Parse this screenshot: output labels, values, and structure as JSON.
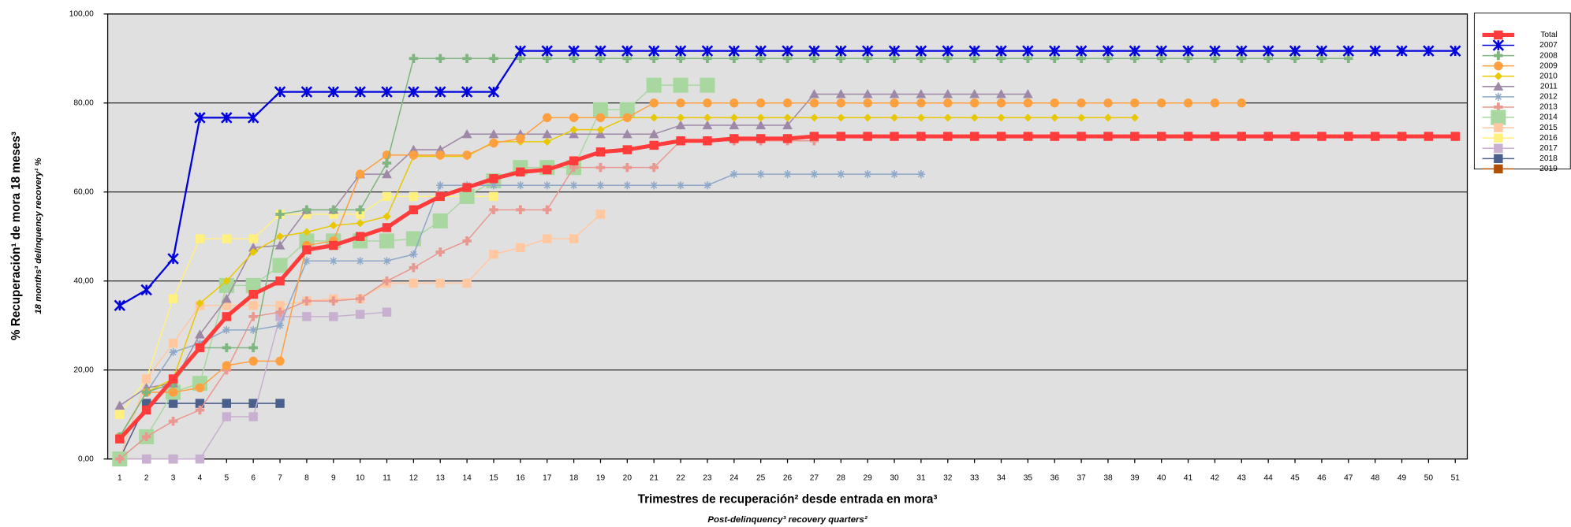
{
  "chart_data": {
    "type": "line",
    "y_title": "% Recuperación¹ de mora 18 meses³",
    "y_subtitle": "18 months³ delinquency recovery¹ %",
    "x_title": "Trimestres de recuperación² desde entrada en mora³",
    "x_subtitle": "Post-delinquency³ recovery quarters²",
    "x": [
      1,
      2,
      3,
      4,
      5,
      6,
      7,
      8,
      9,
      10,
      11,
      12,
      13,
      14,
      15,
      16,
      17,
      18,
      19,
      20,
      21,
      22,
      23,
      24,
      25,
      26,
      27,
      28,
      29,
      30,
      31,
      32,
      33,
      34,
      35,
      36,
      37,
      38,
      39,
      40,
      41,
      42,
      43,
      44,
      45,
      46,
      47,
      48,
      49,
      50,
      51
    ],
    "xlim": [
      0.55,
      51.45
    ],
    "ylim": [
      0,
      100
    ],
    "yticks": [
      {
        "value": 0,
        "label": "0,00"
      },
      {
        "value": 20,
        "label": "20,00"
      },
      {
        "value": 40,
        "label": "40,00"
      },
      {
        "value": 60,
        "label": "60,00"
      },
      {
        "value": 80,
        "label": "80,00"
      },
      {
        "value": 100,
        "label": "100,00"
      }
    ],
    "grid": true,
    "legend": "right",
    "series": [
      {
        "name": "Total",
        "color": "#ff3b3b",
        "marker": "square",
        "values": [
          4.5,
          11,
          18,
          25,
          32,
          37,
          40,
          47,
          48,
          50,
          52,
          56,
          59,
          61,
          63,
          64.5,
          65,
          67,
          69,
          69.5,
          70.5,
          71.5,
          71.5,
          72,
          72,
          72,
          72.5,
          72.5,
          72.5,
          72.5,
          72.5,
          72.5,
          72.5,
          72.5,
          72.5,
          72.5,
          72.5,
          72.5,
          72.5,
          72.5,
          72.5,
          72.5,
          72.5,
          72.5,
          72.5,
          72.5,
          72.5,
          72.5,
          72.5,
          72.5,
          72.5
        ]
      },
      {
        "name": "2007",
        "color": "#0000dd",
        "marker": "xstar",
        "values": [
          34.5,
          38,
          45,
          76.7,
          76.7,
          76.7,
          82.5,
          82.5,
          82.5,
          82.5,
          82.5,
          82.5,
          82.5,
          82.5,
          82.5,
          91.7,
          91.7,
          91.7,
          91.7,
          91.7,
          91.7,
          91.7,
          91.7,
          91.7,
          91.7,
          91.7,
          91.7,
          91.7,
          91.7,
          91.7,
          91.7,
          91.7,
          91.7,
          91.7,
          91.7,
          91.7,
          91.7,
          91.7,
          91.7,
          91.7,
          91.7,
          91.7,
          91.7,
          91.7,
          91.7,
          91.7,
          91.7,
          91.7,
          91.7,
          91.7,
          91.7
        ]
      },
      {
        "name": "2008",
        "color": "#7fb57f",
        "marker": "plus",
        "values": [
          5,
          15,
          17,
          25,
          25,
          25,
          55,
          56,
          56,
          56,
          66.5,
          90,
          90,
          90,
          90,
          90,
          90,
          90,
          90,
          90,
          90,
          90,
          90,
          90,
          90,
          90,
          90,
          90,
          90,
          90,
          90,
          90,
          90,
          90,
          90,
          90,
          90,
          90,
          90,
          90,
          90,
          90,
          90,
          90,
          90,
          90,
          90,
          null,
          null,
          null,
          null
        ]
      },
      {
        "name": "2009",
        "color": "#ffa040",
        "marker": "circle",
        "values": [
          5,
          15,
          15,
          16,
          21,
          22,
          22,
          48,
          49,
          64,
          68.3,
          68.3,
          68.3,
          68.3,
          71,
          72,
          76.7,
          76.7,
          76.7,
          76.7,
          80,
          80,
          80,
          80,
          80,
          80,
          80,
          80,
          80,
          80,
          80,
          80,
          80,
          80,
          80,
          80,
          80,
          80,
          80,
          80,
          80,
          80,
          80,
          null,
          null,
          null,
          null,
          null,
          null,
          null,
          null
        ]
      },
      {
        "name": "2010",
        "color": "#e8c800",
        "marker": "diamond",
        "values": [
          5,
          15,
          18,
          35,
          40,
          46.5,
          50,
          51,
          52.5,
          53,
          54.5,
          68,
          68,
          68,
          71.3,
          71.3,
          71.3,
          74,
          74,
          76.7,
          76.7,
          76.7,
          76.7,
          76.7,
          76.7,
          76.7,
          76.7,
          76.7,
          76.7,
          76.7,
          76.7,
          76.7,
          76.7,
          76.7,
          76.7,
          76.7,
          76.7,
          76.7,
          76.7,
          null,
          null,
          null,
          null,
          null,
          null,
          null,
          null,
          null,
          null,
          null,
          null
        ]
      },
      {
        "name": "2011",
        "color": "#9e88a8",
        "marker": "triangle",
        "values": [
          12,
          16,
          17,
          28,
          36,
          47.5,
          48,
          56,
          56,
          64,
          64,
          69.5,
          69.5,
          73,
          73,
          73,
          73,
          73,
          73,
          73,
          73,
          75,
          75,
          75,
          75,
          75,
          82,
          82,
          82,
          82,
          82,
          82,
          82,
          82,
          82,
          null,
          null,
          null,
          null,
          null,
          null,
          null,
          null,
          null,
          null,
          null,
          null,
          null,
          null,
          null,
          null
        ]
      },
      {
        "name": "2012",
        "color": "#8fa8c8",
        "marker": "star",
        "values": [
          5,
          15,
          24,
          26,
          29,
          29,
          30,
          44.5,
          44.5,
          44.5,
          44.5,
          46,
          61.5,
          61.5,
          61.5,
          61.5,
          61.5,
          61.5,
          61.5,
          61.5,
          61.5,
          61.5,
          61.5,
          64,
          64,
          64,
          64,
          64,
          64,
          64,
          64,
          null,
          null,
          null,
          null,
          null,
          null,
          null,
          null,
          null,
          null,
          null,
          null,
          null,
          null,
          null,
          null,
          null,
          null,
          null,
          null
        ]
      },
      {
        "name": "2013",
        "color": "#e89890",
        "marker": "plus",
        "values": [
          0,
          5,
          8.5,
          11,
          20,
          32,
          33,
          35.5,
          35.5,
          36,
          40,
          43,
          46.5,
          49,
          56,
          56,
          56,
          65.5,
          65.5,
          65.5,
          65.5,
          71.5,
          71.5,
          71.5,
          71.5,
          71.5,
          71.5,
          null,
          null,
          null,
          null,
          null,
          null,
          null,
          null,
          null,
          null,
          null,
          null,
          null,
          null,
          null,
          null,
          null,
          null,
          null,
          null,
          null,
          null,
          null,
          null
        ]
      },
      {
        "name": "2014",
        "color": "#a8d8a0",
        "marker": "bigsquare",
        "values": [
          0,
          5,
          15,
          17,
          39,
          39,
          43.5,
          49,
          49,
          49,
          49,
          49.5,
          53.5,
          59,
          62.5,
          65.5,
          65.5,
          65.5,
          78.5,
          78.5,
          84,
          84,
          84,
          null,
          null,
          null,
          null,
          null,
          null,
          null,
          null,
          null,
          null,
          null,
          null,
          null,
          null,
          null,
          null,
          null,
          null,
          null,
          null,
          null,
          null,
          null,
          null,
          null,
          null,
          null,
          null
        ]
      },
      {
        "name": "2015",
        "color": "#ffc8a0",
        "marker": "square",
        "values": [
          0,
          18,
          26,
          34.5,
          34.5,
          34.5,
          34.5,
          35.5,
          36,
          36,
          39.5,
          39.5,
          39.5,
          39.5,
          46,
          47.5,
          49.5,
          49.5,
          55,
          null,
          null,
          null,
          null,
          null,
          null,
          null,
          null,
          null,
          null,
          null,
          null,
          null,
          null,
          null,
          null,
          null,
          null,
          null,
          null,
          null,
          null,
          null,
          null,
          null,
          null,
          null,
          null,
          null,
          null,
          null,
          null
        ]
      },
      {
        "name": "2016",
        "color": "#fff080",
        "marker": "square",
        "values": [
          10,
          18,
          36,
          49.5,
          49.5,
          49.5,
          55,
          55,
          55,
          55,
          59,
          59,
          59,
          59,
          59,
          null,
          null,
          null,
          null,
          null,
          null,
          null,
          null,
          null,
          null,
          null,
          null,
          null,
          null,
          null,
          null,
          null,
          null,
          null,
          null,
          null,
          null,
          null,
          null,
          null,
          null,
          null,
          null,
          null,
          null,
          null,
          null,
          null,
          null,
          null,
          null
        ]
      },
      {
        "name": "2017",
        "color": "#c8b0d0",
        "marker": "square",
        "values": [
          0,
          0,
          0,
          0,
          9.5,
          9.5,
          32,
          32,
          32,
          32.5,
          33,
          null,
          null,
          null,
          null,
          null,
          null,
          null,
          null,
          null,
          null,
          null,
          null,
          null,
          null,
          null,
          null,
          null,
          null,
          null,
          null,
          null,
          null,
          null,
          null,
          null,
          null,
          null,
          null,
          null,
          null,
          null,
          null,
          null,
          null,
          null,
          null,
          null,
          null,
          null,
          null
        ]
      },
      {
        "name": "2018",
        "color": "#4a5f8a",
        "marker": "square",
        "values": [
          0,
          12.5,
          12.5,
          12.5,
          12.5,
          12.5,
          12.5,
          null,
          null,
          null,
          null,
          null,
          null,
          null,
          null,
          null,
          null,
          null,
          null,
          null,
          null,
          null,
          null,
          null,
          null,
          null,
          null,
          null,
          null,
          null,
          null,
          null,
          null,
          null,
          null,
          null,
          null,
          null,
          null,
          null,
          null,
          null,
          null,
          null,
          null,
          null,
          null,
          null,
          null,
          null,
          null
        ]
      },
      {
        "name": "2019",
        "color": "#b05000",
        "marker": "square",
        "values": [
          0,
          0,
          0,
          null,
          null,
          null,
          null,
          null,
          null,
          null,
          null,
          null,
          null,
          null,
          null,
          null,
          null,
          null,
          null,
          null,
          null,
          null,
          null,
          null,
          null,
          null,
          null,
          null,
          null,
          null,
          null,
          null,
          null,
          null,
          null,
          null,
          null,
          null,
          null,
          null,
          null,
          null,
          null,
          null,
          null,
          null,
          null,
          null,
          null,
          null,
          null
        ]
      }
    ]
  }
}
